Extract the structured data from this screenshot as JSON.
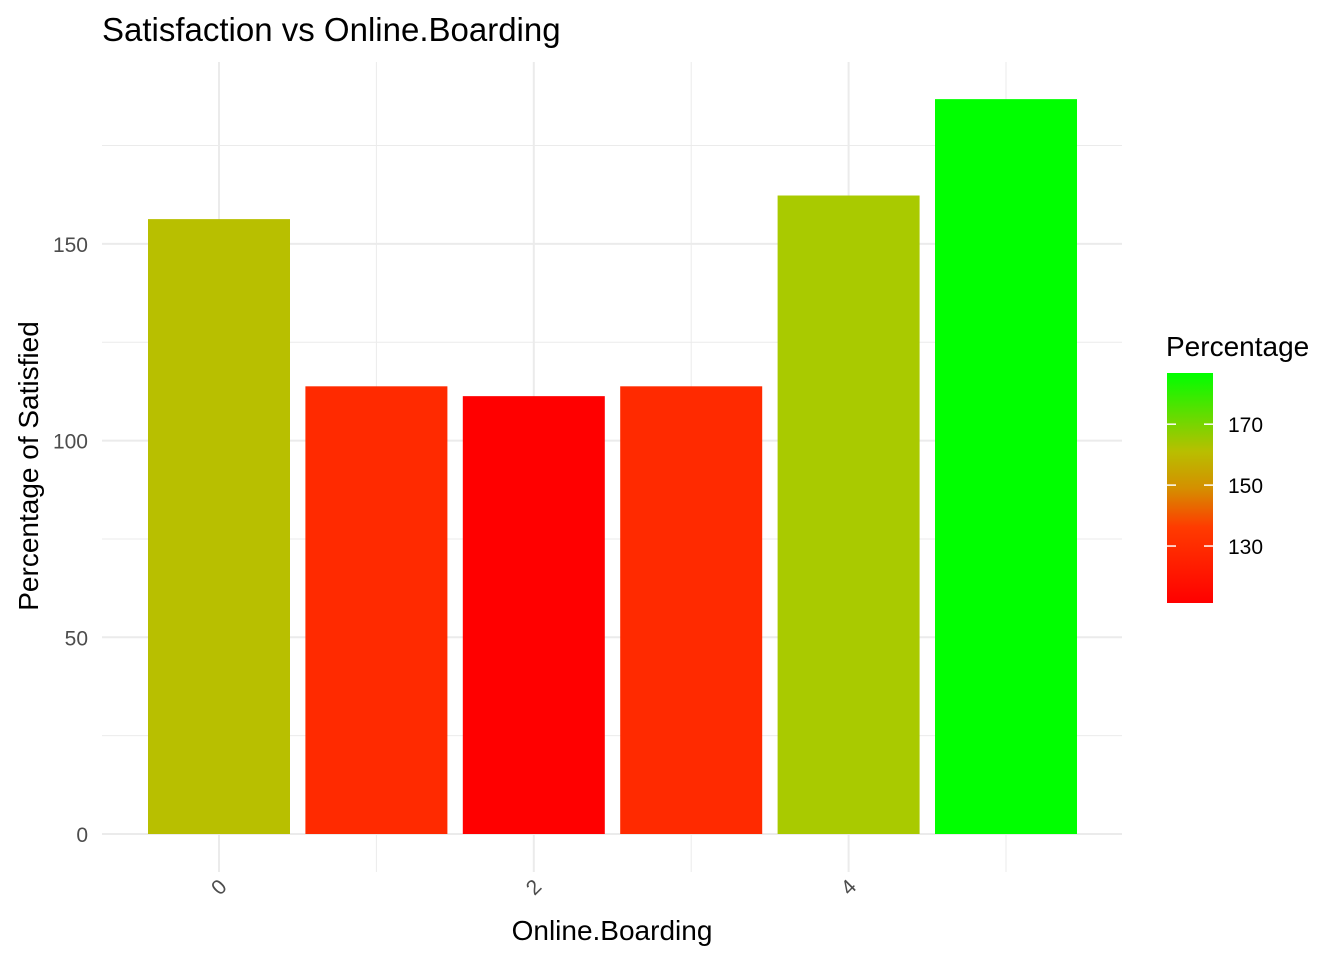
{
  "chart_data": {
    "type": "bar",
    "title": "Satisfaction vs Online.Boarding",
    "xlabel": "Online.Boarding",
    "ylabel": "Percentage of Satisfied",
    "x": [
      0,
      1,
      2,
      3,
      4,
      5
    ],
    "x_ticks": [
      "0",
      "2",
      "4"
    ],
    "values": [
      156.3,
      113.8,
      111.3,
      113.8,
      162.3,
      186.8
    ],
    "ylim": [
      0,
      188
    ],
    "y_ticks": [
      0,
      50,
      100,
      150
    ],
    "grid": true,
    "legend": {
      "title": "Percentage",
      "position": "right",
      "ticks": [
        130,
        150,
        170
      ],
      "range": [
        111.3,
        186.8
      ],
      "low_color": "#ff0000",
      "high_color": "#00ff00"
    },
    "bar_colors": [
      "#b8bf00",
      "#ff2a00",
      "#ff0000",
      "#ff2a00",
      "#a9ca00",
      "#00ff00"
    ]
  }
}
